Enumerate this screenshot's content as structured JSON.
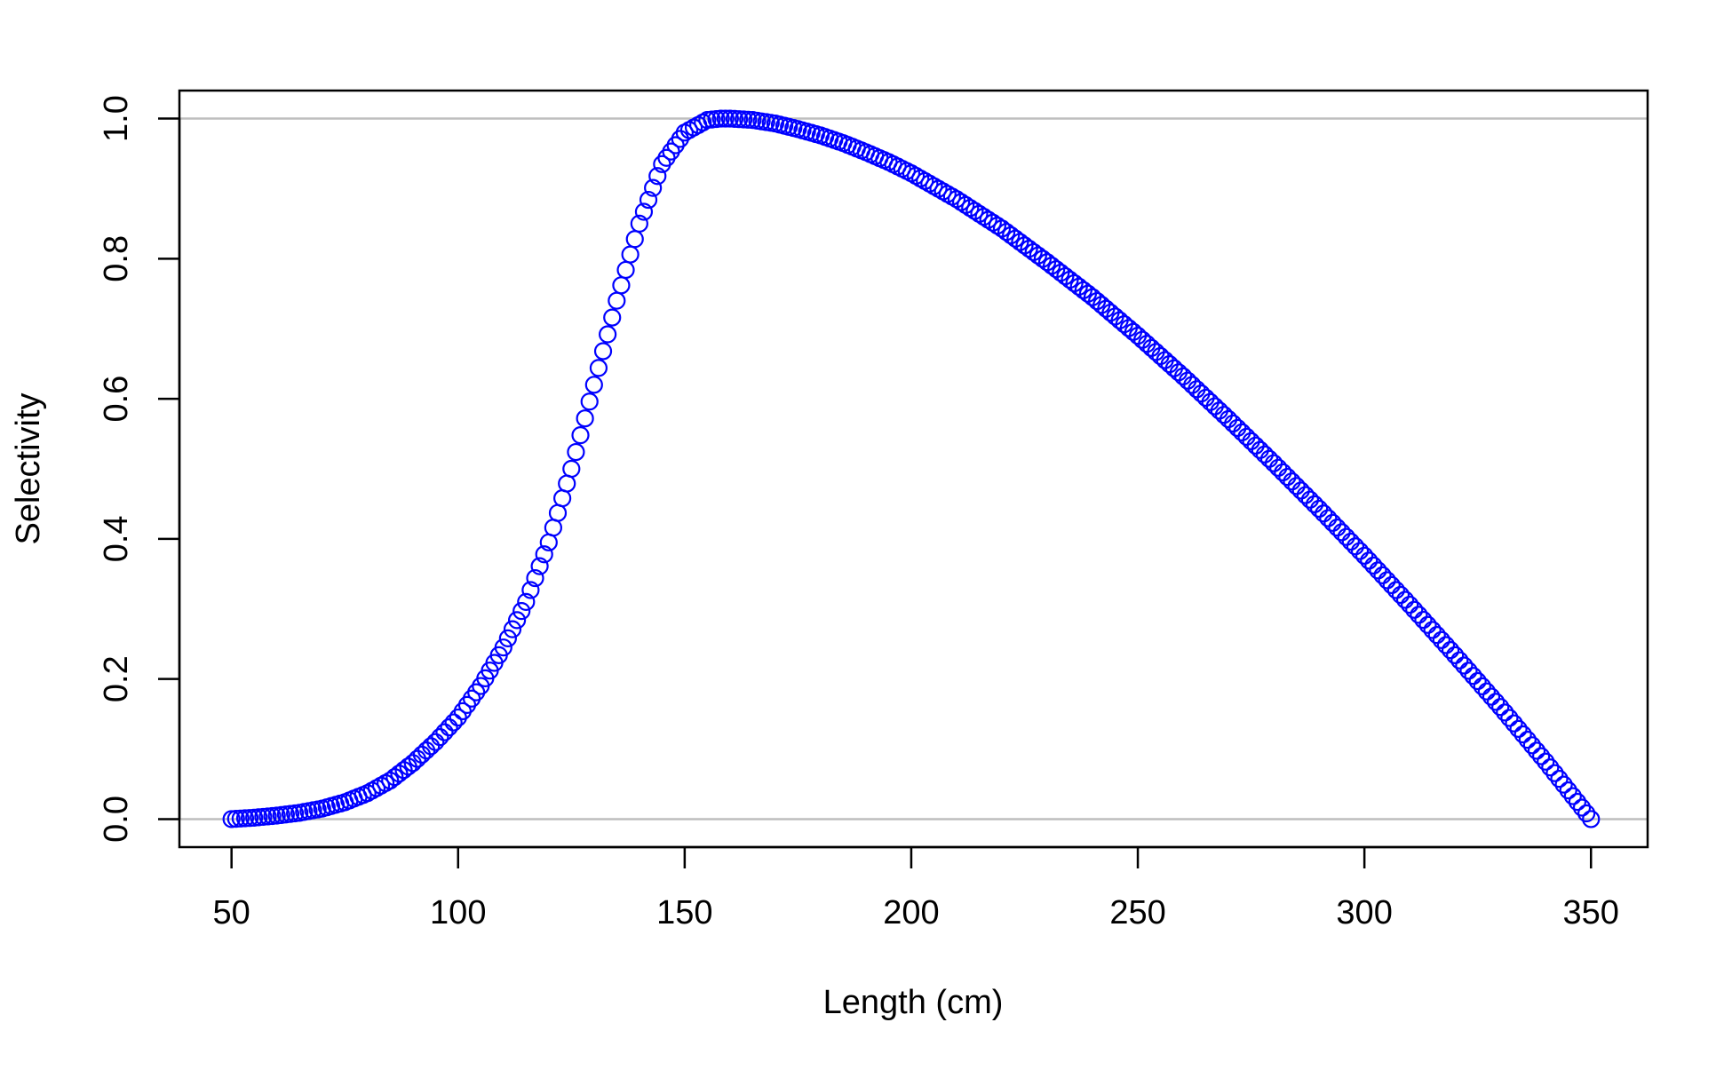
{
  "chart_data": {
    "type": "scatter",
    "xlabel": "Length (cm)",
    "ylabel": "Selectivity",
    "xlim": [
      38.5,
      362.5
    ],
    "ylim": [
      -0.04,
      1.04
    ],
    "xticks": [
      50,
      100,
      150,
      200,
      250,
      300,
      350
    ],
    "yticks": [
      0.0,
      0.2,
      0.4,
      0.6,
      0.8,
      1.0
    ],
    "xtick_labels": [
      "50",
      "100",
      "150",
      "200",
      "250",
      "300",
      "350"
    ],
    "ytick_labels": [
      "0.0",
      "0.2",
      "0.4",
      "0.6",
      "0.8",
      "1.0"
    ],
    "reference_lines_y": [
      0.0,
      1.0
    ],
    "grid": false,
    "marker": "open-circle",
    "x_step": 1,
    "series": [
      {
        "x": [
          50,
          55,
          60,
          65,
          70,
          75,
          80,
          85,
          90,
          95,
          100,
          105,
          110,
          115,
          120,
          125,
          130,
          135,
          140,
          145,
          150,
          155,
          158,
          160,
          165,
          170,
          175,
          180,
          185,
          190,
          195,
          200,
          210,
          220,
          230,
          240,
          250,
          260,
          270,
          280,
          290,
          300,
          310,
          320,
          330,
          340,
          350
        ],
        "y": [
          0.0,
          0.002,
          0.005,
          0.009,
          0.015,
          0.024,
          0.037,
          0.055,
          0.08,
          0.11,
          0.145,
          0.19,
          0.245,
          0.31,
          0.395,
          0.5,
          0.62,
          0.74,
          0.85,
          0.935,
          0.98,
          0.998,
          1.0,
          1.0,
          0.998,
          0.993,
          0.985,
          0.976,
          0.965,
          0.952,
          0.938,
          0.922,
          0.885,
          0.843,
          0.795,
          0.745,
          0.69,
          0.632,
          0.571,
          0.508,
          0.443,
          0.376,
          0.306,
          0.234,
          0.16,
          0.082,
          0.0
        ]
      }
    ],
    "colors": {
      "points": "#0000ff",
      "reference_lines": "#bebebe",
      "frame": "#000000"
    }
  }
}
